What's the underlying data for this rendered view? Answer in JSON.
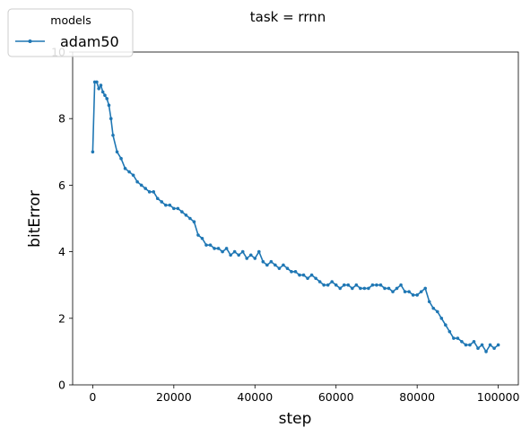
{
  "chart_data": {
    "type": "line",
    "title": "task = rrnn",
    "xlabel": "step",
    "ylabel": "bitError",
    "xlim": [
      -4950,
      104950
    ],
    "ylim": [
      0,
      10
    ],
    "xticks": [
      0,
      20000,
      40000,
      60000,
      80000,
      100000
    ],
    "xtick_labels": [
      "0",
      "20000",
      "40000",
      "60000",
      "80000",
      "100000"
    ],
    "yticks": [
      0,
      2,
      4,
      6,
      8,
      10
    ],
    "ytick_labels": [
      "0",
      "2",
      "4",
      "6",
      "8",
      "10"
    ],
    "grid": false,
    "legend": {
      "title": "models",
      "placement": "top-left"
    },
    "series": [
      {
        "name": "adam50",
        "color": "#1f77b4",
        "marker": "circle",
        "x": [
          0,
          500,
          1000,
          1500,
          2000,
          2500,
          3000,
          3500,
          4000,
          4500,
          5000,
          6000,
          7000,
          8000,
          9000,
          10000,
          11000,
          12000,
          13000,
          14000,
          15000,
          16000,
          17000,
          18000,
          19000,
          20000,
          21000,
          22000,
          23000,
          24000,
          25000,
          26000,
          27000,
          28000,
          29000,
          30000,
          31000,
          32000,
          33000,
          34000,
          35000,
          36000,
          37000,
          38000,
          39000,
          40000,
          41000,
          42000,
          43000,
          44000,
          45000,
          46000,
          47000,
          48000,
          49000,
          50000,
          51000,
          52000,
          53000,
          54000,
          55000,
          56000,
          57000,
          58000,
          59000,
          60000,
          61000,
          62000,
          63000,
          64000,
          65000,
          66000,
          67000,
          68000,
          69000,
          70000,
          71000,
          72000,
          73000,
          74000,
          75000,
          76000,
          77000,
          78000,
          79000,
          80000,
          81000,
          82000,
          83000,
          84000,
          85000,
          86000,
          87000,
          88000,
          89000,
          90000,
          91000,
          92000,
          93000,
          94000,
          95000,
          96000,
          97000,
          98000,
          99000,
          100000
        ],
        "y": [
          7.0,
          9.1,
          9.1,
          8.9,
          9.0,
          8.8,
          8.7,
          8.6,
          8.4,
          8.0,
          7.5,
          7.0,
          6.8,
          6.5,
          6.4,
          6.3,
          6.1,
          6.0,
          5.9,
          5.8,
          5.8,
          5.6,
          5.5,
          5.4,
          5.4,
          5.3,
          5.3,
          5.2,
          5.1,
          5.0,
          4.9,
          4.5,
          4.4,
          4.2,
          4.2,
          4.1,
          4.1,
          4.0,
          4.1,
          3.9,
          4.0,
          3.9,
          4.0,
          3.8,
          3.9,
          3.8,
          4.0,
          3.7,
          3.6,
          3.7,
          3.6,
          3.5,
          3.6,
          3.5,
          3.4,
          3.4,
          3.3,
          3.3,
          3.2,
          3.3,
          3.2,
          3.1,
          3.0,
          3.0,
          3.1,
          3.0,
          2.9,
          3.0,
          3.0,
          2.9,
          3.0,
          2.9,
          2.9,
          2.9,
          3.0,
          3.0,
          3.0,
          2.9,
          2.9,
          2.8,
          2.9,
          3.0,
          2.8,
          2.8,
          2.7,
          2.7,
          2.8,
          2.9,
          2.5,
          2.3,
          2.2,
          2.0,
          1.8,
          1.6,
          1.4,
          1.4,
          1.3,
          1.2,
          1.2,
          1.3,
          1.1,
          1.2,
          1.0,
          1.2,
          1.1,
          1.2
        ]
      }
    ]
  }
}
